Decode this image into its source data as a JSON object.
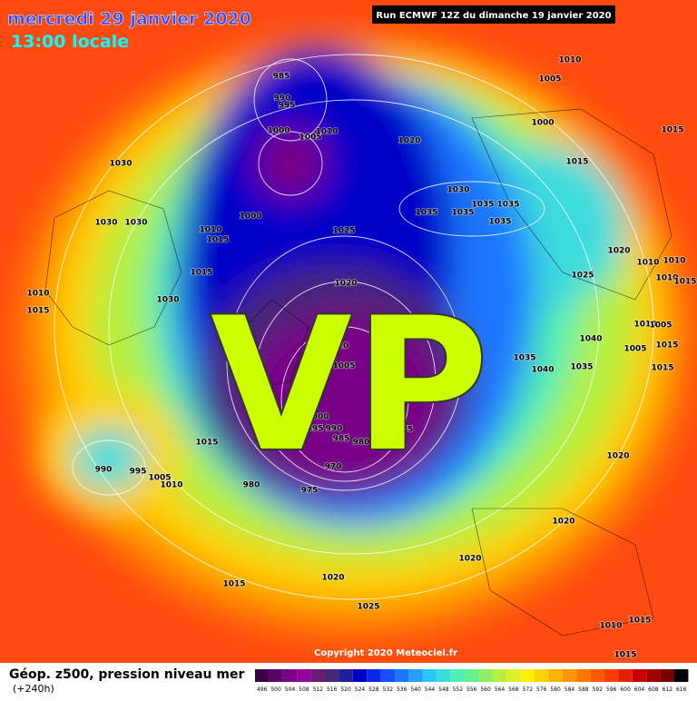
{
  "header": {
    "date": "mercredi 29 janvier 2020",
    "time": "13:00 locale",
    "run": "Run ECMWF 12Z du dimanche 19 janvier 2020"
  },
  "overlay": "VP",
  "copyright": "Copyright 2020 Meteociel.fr",
  "footer": {
    "title": "Géop. z500, pression niveau mer",
    "lead": "(+240h)"
  },
  "pressure_labels": [
    "1030",
    "1030",
    "1030",
    "1010",
    "1015",
    "1015",
    "1010",
    "1015",
    "1030",
    "1000",
    "985",
    "990",
    "995",
    "1000",
    "1005",
    "1010",
    "1020",
    "1010",
    "1005",
    "1000",
    "1015",
    "1015",
    "1030",
    "1035",
    "1035",
    "1035",
    "1035",
    "1035",
    "1025",
    "1020",
    "1020",
    "1010",
    "1010",
    "1025",
    "1010",
    "1015",
    "1010",
    "1005",
    "1040",
    "1005",
    "1015",
    "1035",
    "1040",
    "1035",
    "1015",
    "1005",
    "10",
    "1000",
    "995",
    "990",
    "985",
    "980",
    "975",
    "970",
    "975",
    "980",
    "1015",
    "990",
    "995",
    "1005",
    "1010",
    "1020",
    "1020",
    "1020",
    "1020",
    "1015",
    "1025",
    "1010",
    "1015",
    "1015"
  ],
  "colorbar": {
    "values": [
      496,
      500,
      504,
      508,
      512,
      516,
      520,
      524,
      528,
      532,
      536,
      540,
      544,
      548,
      552,
      556,
      560,
      564,
      568,
      572,
      576,
      580,
      584,
      588,
      592,
      596,
      600,
      604,
      608,
      612,
      616
    ],
    "colors": [
      "#3c0046",
      "#5a0069",
      "#780087",
      "#96009b",
      "#6e1e6e",
      "#462878",
      "#1e1e96",
      "#0000c8",
      "#0a28e6",
      "#1450ff",
      "#1e78ff",
      "#28a0ff",
      "#28c8ff",
      "#3cdcdc",
      "#50f0b4",
      "#64f08c",
      "#8cf064",
      "#b4f03c",
      "#dcf028",
      "#fff000",
      "#ffd200",
      "#ffb400",
      "#ff9600",
      "#ff7800",
      "#ff5a00",
      "#ff3c00",
      "#e61e00",
      "#c80000",
      "#a00000",
      "#780000",
      "#000000"
    ]
  }
}
